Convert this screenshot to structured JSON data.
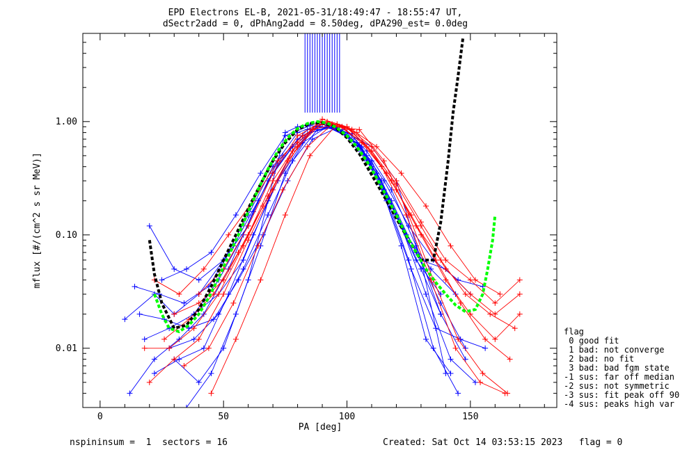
{
  "chart_data": {
    "type": "line",
    "title": "EPD Electrons EL-B, 2021-05-31/18:49:47 - 18:55:47 UT,",
    "subtitle": "dSectr2add = 0, dPhAng2add = 8.50deg, dPA290_est=   0.0deg",
    "xlabel": "PA [deg]",
    "ylabel": "mflux [#/(cm^2 s sr MeV)]",
    "xlim": [
      -7,
      185
    ],
    "ylim": [
      0.003,
      6.0
    ],
    "yscale": "log",
    "grid": false,
    "x_ticks": [
      0,
      50,
      100,
      150
    ],
    "x_tick_labels": [
      "0",
      "50",
      "100",
      "150"
    ],
    "y_ticks": [
      0.01,
      0.1,
      1.0
    ],
    "y_tick_labels": [
      "0.01",
      "0.10",
      "1.00"
    ],
    "colors": {
      "blue": "#0000ff",
      "red": "#ff0000",
      "green": "#00ff00",
      "black": "#000000"
    },
    "fit_black": {
      "x": [
        20,
        22,
        25,
        30,
        35,
        40,
        45,
        50,
        55,
        60,
        65,
        70,
        75,
        80,
        85,
        90,
        95,
        100,
        105,
        110,
        115,
        120,
        125,
        130,
        135,
        138,
        141,
        143,
        145,
        147
      ],
      "y": [
        0.09,
        0.045,
        0.025,
        0.015,
        0.016,
        0.022,
        0.035,
        0.06,
        0.1,
        0.17,
        0.28,
        0.45,
        0.65,
        0.85,
        0.96,
        0.98,
        0.9,
        0.72,
        0.52,
        0.34,
        0.22,
        0.14,
        0.09,
        0.06,
        0.06,
        0.13,
        0.45,
        1.2,
        2.5,
        5.5
      ]
    },
    "fit_green": {
      "x": [
        22,
        25,
        28,
        32,
        36,
        40,
        44,
        48,
        52,
        56,
        60,
        64,
        68,
        72,
        76,
        80,
        84,
        88,
        92,
        96,
        100,
        104,
        108,
        112,
        116,
        120,
        124,
        128,
        132,
        136,
        140,
        144,
        148,
        152,
        155,
        157,
        159,
        160
      ],
      "y": [
        0.03,
        0.02,
        0.015,
        0.014,
        0.016,
        0.02,
        0.028,
        0.042,
        0.065,
        0.1,
        0.16,
        0.25,
        0.38,
        0.55,
        0.72,
        0.87,
        0.96,
        1.0,
        0.97,
        0.88,
        0.75,
        0.6,
        0.45,
        0.32,
        0.22,
        0.15,
        0.1,
        0.07,
        0.05,
        0.038,
        0.03,
        0.024,
        0.021,
        0.022,
        0.03,
        0.05,
        0.09,
        0.15
      ]
    },
    "series": [
      {
        "color": "blue",
        "x": [
          10,
          22,
          30,
          40,
          50,
          60,
          70,
          80,
          90,
          100,
          110,
          120,
          130,
          138
        ],
        "y": [
          0.018,
          0.03,
          0.02,
          0.03,
          0.06,
          0.15,
          0.4,
          0.8,
          0.95,
          0.75,
          0.45,
          0.15,
          0.05,
          0.02
        ]
      },
      {
        "color": "blue",
        "x": [
          12,
          22,
          32,
          42,
          52,
          62,
          72,
          82,
          92,
          102,
          112,
          122,
          132,
          142,
          152
        ],
        "y": [
          0.004,
          0.008,
          0.012,
          0.02,
          0.05,
          0.16,
          0.45,
          0.75,
          0.9,
          0.7,
          0.35,
          0.12,
          0.03,
          0.008,
          0.005
        ]
      },
      {
        "color": "blue",
        "x": [
          14,
          24,
          34,
          44,
          54,
          64,
          74,
          84,
          94,
          104,
          114,
          124,
          134,
          144
        ],
        "y": [
          0.035,
          0.03,
          0.025,
          0.035,
          0.08,
          0.2,
          0.5,
          0.85,
          0.92,
          0.65,
          0.3,
          0.1,
          0.05,
          0.03
        ]
      },
      {
        "color": "blue",
        "x": [
          16,
          26,
          36,
          46,
          56,
          66,
          76,
          86,
          96,
          106,
          116,
          126,
          136,
          146,
          156
        ],
        "y": [
          0.02,
          0.018,
          0.015,
          0.018,
          0.04,
          0.1,
          0.3,
          0.7,
          0.88,
          0.6,
          0.2,
          0.05,
          0.015,
          0.012,
          0.01
        ]
      },
      {
        "color": "blue",
        "x": [
          18,
          28,
          38,
          48,
          58,
          68,
          78,
          88,
          98,
          108,
          118,
          128,
          138,
          148
        ],
        "y": [
          0.012,
          0.015,
          0.02,
          0.04,
          0.1,
          0.3,
          0.6,
          0.9,
          0.85,
          0.5,
          0.2,
          0.07,
          0.025,
          0.01
        ]
      },
      {
        "color": "blue",
        "x": [
          20,
          30,
          40,
          50,
          60,
          70,
          80,
          90,
          100,
          110,
          120,
          130,
          140,
          150
        ],
        "y": [
          0.12,
          0.05,
          0.04,
          0.06,
          0.12,
          0.35,
          0.7,
          0.95,
          0.8,
          0.4,
          0.15,
          0.06,
          0.05,
          0.03
        ]
      },
      {
        "color": "blue",
        "x": [
          22,
          32,
          42,
          52,
          62,
          72,
          82,
          92,
          102,
          112,
          122,
          132,
          142
        ],
        "y": [
          0.006,
          0.008,
          0.01,
          0.03,
          0.1,
          0.3,
          0.65,
          0.9,
          0.78,
          0.35,
          0.08,
          0.012,
          0.006
        ]
      },
      {
        "color": "blue",
        "x": [
          25,
          35,
          45,
          55,
          65,
          75,
          85,
          95,
          105,
          115,
          125,
          135,
          145,
          155
        ],
        "y": [
          0.04,
          0.05,
          0.07,
          0.15,
          0.35,
          0.75,
          0.92,
          0.88,
          0.62,
          0.3,
          0.12,
          0.06,
          0.04,
          0.035
        ]
      },
      {
        "color": "blue",
        "x": [
          28,
          38,
          48,
          58,
          68,
          78,
          88,
          98,
          108,
          118,
          128,
          138,
          148
        ],
        "y": [
          0.01,
          0.012,
          0.02,
          0.05,
          0.15,
          0.45,
          0.85,
          0.9,
          0.55,
          0.25,
          0.08,
          0.02,
          0.008
        ]
      },
      {
        "color": "blue",
        "x": [
          30,
          40,
          50,
          60,
          70,
          75,
          80,
          90,
          100,
          110,
          120,
          130,
          140
        ],
        "y": [
          0.008,
          0.005,
          0.01,
          0.04,
          0.3,
          0.8,
          0.9,
          0.98,
          0.8,
          0.6,
          0.3,
          0.06,
          0.006
        ]
      },
      {
        "color": "blue",
        "x": [
          35,
          45,
          55,
          65,
          75,
          85,
          95,
          105,
          115,
          125,
          135,
          145
        ],
        "y": [
          0.003,
          0.006,
          0.02,
          0.08,
          0.35,
          0.8,
          0.9,
          0.6,
          0.25,
          0.06,
          0.01,
          0.004
        ]
      },
      {
        "color": "blue",
        "x": [
          38,
          48,
          58,
          68,
          78,
          88,
          98,
          108,
          118,
          128,
          138
        ],
        "y": [
          0.02,
          0.03,
          0.06,
          0.2,
          0.55,
          0.92,
          0.82,
          0.45,
          0.18,
          0.06,
          0.03
        ]
      },
      {
        "color": "red",
        "x": [
          18,
          28,
          38,
          48,
          58,
          68,
          78,
          88,
          98,
          108,
          118,
          128,
          138,
          148,
          158,
          168
        ],
        "y": [
          0.01,
          0.01,
          0.015,
          0.03,
          0.08,
          0.22,
          0.55,
          0.95,
          0.9,
          0.6,
          0.3,
          0.12,
          0.06,
          0.03,
          0.02,
          0.015
        ]
      },
      {
        "color": "red",
        "x": [
          20,
          30,
          40,
          50,
          60,
          70,
          80,
          90,
          100,
          110,
          120,
          130,
          140,
          150,
          160,
          170
        ],
        "y": [
          0.005,
          0.008,
          0.012,
          0.03,
          0.09,
          0.25,
          0.6,
          0.98,
          0.88,
          0.55,
          0.25,
          0.1,
          0.04,
          0.02,
          0.012,
          0.02
        ]
      },
      {
        "color": "red",
        "x": [
          22,
          32,
          42,
          52,
          62,
          72,
          82,
          92,
          102,
          112,
          122,
          132,
          142,
          152,
          162
        ],
        "y": [
          0.04,
          0.03,
          0.05,
          0.1,
          0.2,
          0.45,
          0.75,
          1.0,
          0.85,
          0.6,
          0.35,
          0.18,
          0.08,
          0.04,
          0.03
        ]
      },
      {
        "color": "red",
        "x": [
          26,
          36,
          46,
          56,
          66,
          76,
          86,
          96,
          106,
          116,
          126,
          136,
          146,
          156,
          166
        ],
        "y": [
          0.012,
          0.018,
          0.03,
          0.07,
          0.18,
          0.45,
          0.85,
          0.95,
          0.65,
          0.35,
          0.15,
          0.06,
          0.025,
          0.012,
          0.008
        ]
      },
      {
        "color": "red",
        "x": [
          30,
          40,
          50,
          60,
          70,
          80,
          90,
          100,
          110,
          120,
          130,
          140,
          150,
          160,
          170
        ],
        "y": [
          0.02,
          0.025,
          0.04,
          0.1,
          0.3,
          0.65,
          1.05,
          0.9,
          0.55,
          0.28,
          0.12,
          0.05,
          0.03,
          0.02,
          0.03
        ]
      },
      {
        "color": "red",
        "x": [
          34,
          44,
          54,
          64,
          74,
          84,
          94,
          104,
          114,
          124,
          134,
          144,
          154,
          164
        ],
        "y": [
          0.007,
          0.01,
          0.025,
          0.08,
          0.25,
          0.6,
          0.95,
          0.8,
          0.4,
          0.15,
          0.04,
          0.01,
          0.005,
          0.004
        ]
      },
      {
        "color": "red",
        "x": [
          40,
          50,
          60,
          70,
          80,
          90,
          100,
          110,
          120,
          130,
          140,
          150,
          160,
          170
        ],
        "y": [
          0.03,
          0.05,
          0.12,
          0.35,
          0.75,
          1.0,
          0.9,
          0.6,
          0.3,
          0.13,
          0.06,
          0.04,
          0.025,
          0.04
        ]
      },
      {
        "color": "red",
        "x": [
          45,
          55,
          65,
          75,
          85,
          95,
          105,
          115,
          125,
          135,
          145,
          155,
          165
        ],
        "y": [
          0.004,
          0.012,
          0.04,
          0.15,
          0.5,
          0.9,
          0.85,
          0.45,
          0.15,
          0.04,
          0.012,
          0.006,
          0.004
        ]
      }
    ],
    "blue_bars_x": [
      83,
      84,
      85,
      86,
      87,
      88,
      89,
      90,
      91,
      92,
      93,
      94,
      95,
      96,
      97
    ],
    "blue_bars_y": [
      1.2,
      6.0
    ],
    "legend": {
      "title": "flag",
      "entries": [
        " 0 good fit",
        " 1 bad: not converge",
        " 2 bad: no fit",
        " 3 bad: bad fgm state",
        "-1 sus: far off median",
        "-2 sus: not symmetric",
        "-3 sus: fit peak off 90",
        "-4 sus: peaks high var"
      ]
    },
    "footer_left": "nspininsum =  1  sectors = 16",
    "footer_right": "Created: Sat Oct 14 03:53:15 2023   flag = 0"
  }
}
